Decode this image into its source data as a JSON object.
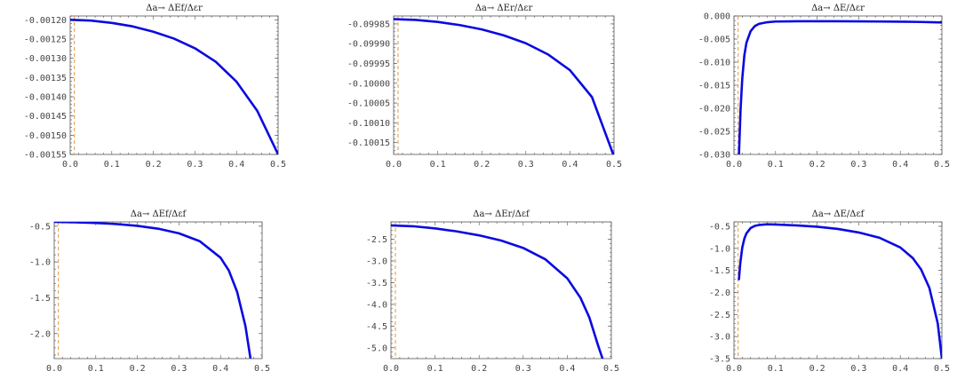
{
  "colors": {
    "curve": "#0a0ae0",
    "marker": "#e8953a",
    "frame": "#555555"
  },
  "chart_data": [
    {
      "type": "line",
      "title": "Δa→ ΔEf/Δεr",
      "xlabel": "",
      "ylabel": "",
      "xlim": [
        0,
        0.5
      ],
      "ylim": [
        -0.00155,
        -0.00119
      ],
      "x_ticks": [
        0,
        0.1,
        0.2,
        0.3,
        0.4,
        0.5
      ],
      "x_tick_labels": [
        "0.0",
        "0.1",
        "0.2",
        "0.3",
        "0.4",
        "0.5"
      ],
      "y_ticks": [
        -0.0012,
        -0.00125,
        -0.0013,
        -0.00135,
        -0.0014,
        -0.00145,
        -0.0015,
        -0.00155
      ],
      "y_tick_labels": [
        "-0.00120",
        "-0.00125",
        "-0.00130",
        "-0.00135",
        "-0.00140",
        "-0.00145",
        "-0.00150",
        "-0.00155"
      ],
      "marker_x": 0.01,
      "series": [
        {
          "x": [
            0.0,
            0.05,
            0.1,
            0.15,
            0.2,
            0.25,
            0.3,
            0.35,
            0.4,
            0.45,
            0.5
          ],
          "y": [
            -0.0012,
            -0.001202,
            -0.001208,
            -0.001217,
            -0.001231,
            -0.001249,
            -0.001274,
            -0.001309,
            -0.001361,
            -0.001437,
            -0.00155
          ]
        }
      ]
    },
    {
      "type": "line",
      "title": "Δa→ ΔEr/Δεr",
      "xlabel": "",
      "ylabel": "",
      "xlim": [
        0,
        0.5
      ],
      "ylim": [
        -0.10018,
        -0.09983
      ],
      "x_ticks": [
        0,
        0.1,
        0.2,
        0.3,
        0.4,
        0.5
      ],
      "x_tick_labels": [
        "0.0",
        "0.1",
        "0.2",
        "0.3",
        "0.4",
        "0.5"
      ],
      "y_ticks": [
        -0.09985,
        -0.0999,
        -0.09995,
        -0.1,
        -0.10005,
        -0.1001,
        -0.10015
      ],
      "y_tick_labels": [
        "-0.09985",
        "-0.09990",
        "-0.09995",
        "-0.10000",
        "-0.10005",
        "-0.10010",
        "-0.10015"
      ],
      "marker_x": 0.01,
      "series": [
        {
          "x": [
            0.0,
            0.05,
            0.1,
            0.15,
            0.2,
            0.25,
            0.3,
            0.35,
            0.4,
            0.45,
            0.5
          ],
          "y": [
            -0.099838,
            -0.09984,
            -0.099845,
            -0.099853,
            -0.099864,
            -0.099879,
            -0.099899,
            -0.099927,
            -0.099967,
            -0.100035,
            -0.100185
          ]
        }
      ]
    },
    {
      "type": "line",
      "title": "Δa→ ΔE/Δεr",
      "xlabel": "",
      "ylabel": "",
      "xlim": [
        0,
        0.5
      ],
      "ylim": [
        -0.03,
        0.0
      ],
      "x_ticks": [
        0,
        0.1,
        0.2,
        0.3,
        0.4,
        0.5
      ],
      "x_tick_labels": [
        "0.0",
        "0.1",
        "0.2",
        "0.3",
        "0.4",
        "0.5"
      ],
      "y_ticks": [
        0.0,
        -0.005,
        -0.01,
        -0.015,
        -0.02,
        -0.025,
        -0.03
      ],
      "y_tick_labels": [
        "0.000",
        "-0.005",
        "-0.010",
        "-0.015",
        "-0.020",
        "-0.025",
        "-0.030"
      ],
      "marker_x": 0.01,
      "series": [
        {
          "x": [
            0.012,
            0.016,
            0.02,
            0.025,
            0.03,
            0.04,
            0.05,
            0.06,
            0.08,
            0.1,
            0.15,
            0.2,
            0.25,
            0.3,
            0.35,
            0.4,
            0.45,
            0.5
          ],
          "y": [
            -0.03,
            -0.02,
            -0.0135,
            -0.0085,
            -0.0058,
            -0.0033,
            -0.0022,
            -0.0017,
            -0.00135,
            -0.0012,
            -0.00115,
            -0.00114,
            -0.00115,
            -0.00117,
            -0.0012,
            -0.00124,
            -0.0013,
            -0.0014
          ]
        }
      ]
    },
    {
      "type": "line",
      "title": "Δa→ ΔEf/Δεf",
      "xlabel": "",
      "ylabel": "",
      "xlim": [
        0,
        0.5
      ],
      "ylim": [
        -2.35,
        -0.44
      ],
      "x_ticks": [
        0,
        0.1,
        0.2,
        0.3,
        0.4,
        0.5
      ],
      "x_tick_labels": [
        "0.0",
        "0.1",
        "0.2",
        "0.3",
        "0.4",
        "0.5"
      ],
      "y_ticks": [
        -0.5,
        -1.0,
        -1.5,
        -2.0
      ],
      "y_tick_labels": [
        "-0.5",
        "-1.0",
        "-1.5",
        "-2.0"
      ],
      "marker_x": 0.01,
      "series": [
        {
          "x": [
            0.0,
            0.05,
            0.1,
            0.15,
            0.2,
            0.25,
            0.3,
            0.35,
            0.4,
            0.42,
            0.44,
            0.46,
            0.472
          ],
          "y": [
            -0.44,
            -0.445,
            -0.455,
            -0.47,
            -0.495,
            -0.535,
            -0.6,
            -0.71,
            -0.94,
            -1.12,
            -1.42,
            -1.9,
            -2.35
          ]
        }
      ]
    },
    {
      "type": "line",
      "title": "Δa→ ΔEr/Δεf",
      "xlabel": "",
      "ylabel": "",
      "xlim": [
        0,
        0.5
      ],
      "ylim": [
        -5.25,
        -2.1
      ],
      "x_ticks": [
        0,
        0.1,
        0.2,
        0.3,
        0.4,
        0.5
      ],
      "x_tick_labels": [
        "0.0",
        "0.1",
        "0.2",
        "0.3",
        "0.4",
        "0.5"
      ],
      "y_ticks": [
        -2.5,
        -3.0,
        -3.5,
        -4.0,
        -4.5,
        -5.0
      ],
      "y_tick_labels": [
        "-2.5",
        "-3.0",
        "-3.5",
        "-4.0",
        "-4.5",
        "-5.0"
      ],
      "marker_x": 0.01,
      "series": [
        {
          "x": [
            0.0,
            0.05,
            0.1,
            0.15,
            0.2,
            0.25,
            0.3,
            0.35,
            0.4,
            0.43,
            0.45,
            0.47,
            0.48
          ],
          "y": [
            -2.18,
            -2.2,
            -2.25,
            -2.32,
            -2.41,
            -2.53,
            -2.7,
            -2.96,
            -3.4,
            -3.85,
            -4.3,
            -4.95,
            -5.25
          ]
        }
      ]
    },
    {
      "type": "line",
      "title": "Δa→ ΔE/Δεf",
      "xlabel": "",
      "ylabel": "",
      "xlim": [
        0,
        0.5
      ],
      "ylim": [
        -3.5,
        -0.4
      ],
      "x_ticks": [
        0,
        0.1,
        0.2,
        0.3,
        0.4,
        0.5
      ],
      "x_tick_labels": [
        "0.0",
        "0.1",
        "0.2",
        "0.3",
        "0.4",
        "0.5"
      ],
      "y_ticks": [
        -0.5,
        -1.0,
        -1.5,
        -2.0,
        -2.5,
        -3.0,
        -3.5
      ],
      "y_tick_labels": [
        "-0.5",
        "-1.0",
        "-1.5",
        "-2.0",
        "-2.5",
        "-3.0",
        "-3.5"
      ],
      "marker_x": 0.01,
      "series": [
        {
          "x": [
            0.012,
            0.015,
            0.02,
            0.025,
            0.03,
            0.04,
            0.05,
            0.06,
            0.08,
            0.1,
            0.15,
            0.2,
            0.25,
            0.3,
            0.35,
            0.4,
            0.43,
            0.45,
            0.47,
            0.49,
            0.5
          ],
          "y": [
            -1.7,
            -1.35,
            -0.98,
            -0.78,
            -0.66,
            -0.54,
            -0.49,
            -0.47,
            -0.455,
            -0.46,
            -0.48,
            -0.51,
            -0.56,
            -0.64,
            -0.76,
            -0.98,
            -1.22,
            -1.48,
            -1.9,
            -2.7,
            -3.5
          ]
        }
      ]
    }
  ]
}
